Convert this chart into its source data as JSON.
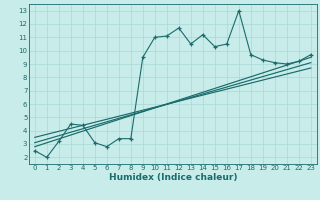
{
  "xlabel": "Humidex (Indice chaleur)",
  "bg_color": "#c8ecea",
  "line_color": "#1a6b6b",
  "grid_color": "#a8d8d5",
  "xlim": [
    -0.5,
    23.5
  ],
  "ylim": [
    1.5,
    13.5
  ],
  "xticks": [
    0,
    1,
    2,
    3,
    4,
    5,
    6,
    7,
    8,
    9,
    10,
    11,
    12,
    13,
    14,
    15,
    16,
    17,
    18,
    19,
    20,
    21,
    22,
    23
  ],
  "yticks": [
    2,
    3,
    4,
    5,
    6,
    7,
    8,
    9,
    10,
    11,
    12,
    13
  ],
  "data_x": [
    0,
    1,
    2,
    3,
    4,
    5,
    6,
    7,
    8,
    9,
    10,
    11,
    12,
    13,
    14,
    15,
    16,
    17,
    18,
    19,
    20,
    21,
    22,
    23
  ],
  "data_y": [
    2.5,
    2.0,
    3.2,
    4.5,
    4.4,
    3.1,
    2.8,
    3.4,
    3.4,
    9.5,
    11.0,
    11.1,
    11.7,
    10.5,
    11.2,
    10.3,
    10.5,
    13.0,
    9.7,
    9.3,
    9.1,
    9.0,
    9.2,
    9.7
  ],
  "reg_lines": [
    [
      [
        0,
        23
      ],
      [
        2.8,
        9.5
      ]
    ],
    [
      [
        0,
        23
      ],
      [
        3.1,
        9.1
      ]
    ],
    [
      [
        0,
        23
      ],
      [
        3.5,
        8.7
      ]
    ]
  ],
  "tick_fontsize": 5.0,
  "xlabel_fontsize": 6.5
}
